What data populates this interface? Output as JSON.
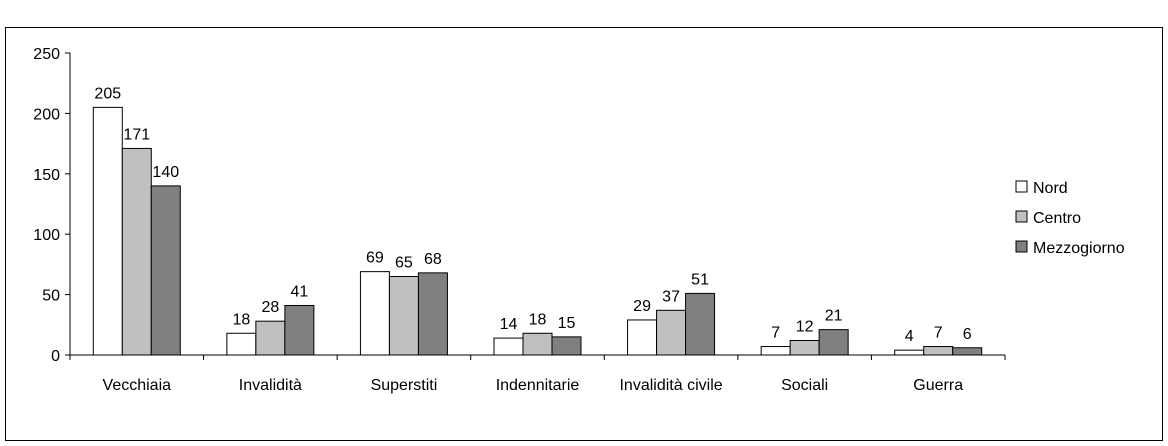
{
  "chart_data": {
    "type": "bar",
    "categories": [
      "Vecchiaia",
      "Invalidità",
      "Superstiti",
      "Indennitarie",
      "Invalidità civile",
      "Sociali",
      "Guerra"
    ],
    "series": [
      {
        "name": "Nord",
        "color": "#ffffff",
        "values": [
          205,
          18,
          69,
          14,
          29,
          7,
          4
        ]
      },
      {
        "name": "Centro",
        "color": "#c0c0c0",
        "values": [
          171,
          28,
          65,
          18,
          37,
          12,
          7
        ]
      },
      {
        "name": "Mezzogiorno",
        "color": "#808080",
        "values": [
          140,
          41,
          68,
          15,
          51,
          21,
          6
        ]
      }
    ],
    "ylim": [
      0,
      250
    ],
    "yticks": [
      0,
      50,
      100,
      150,
      200,
      250
    ],
    "grid": false
  }
}
